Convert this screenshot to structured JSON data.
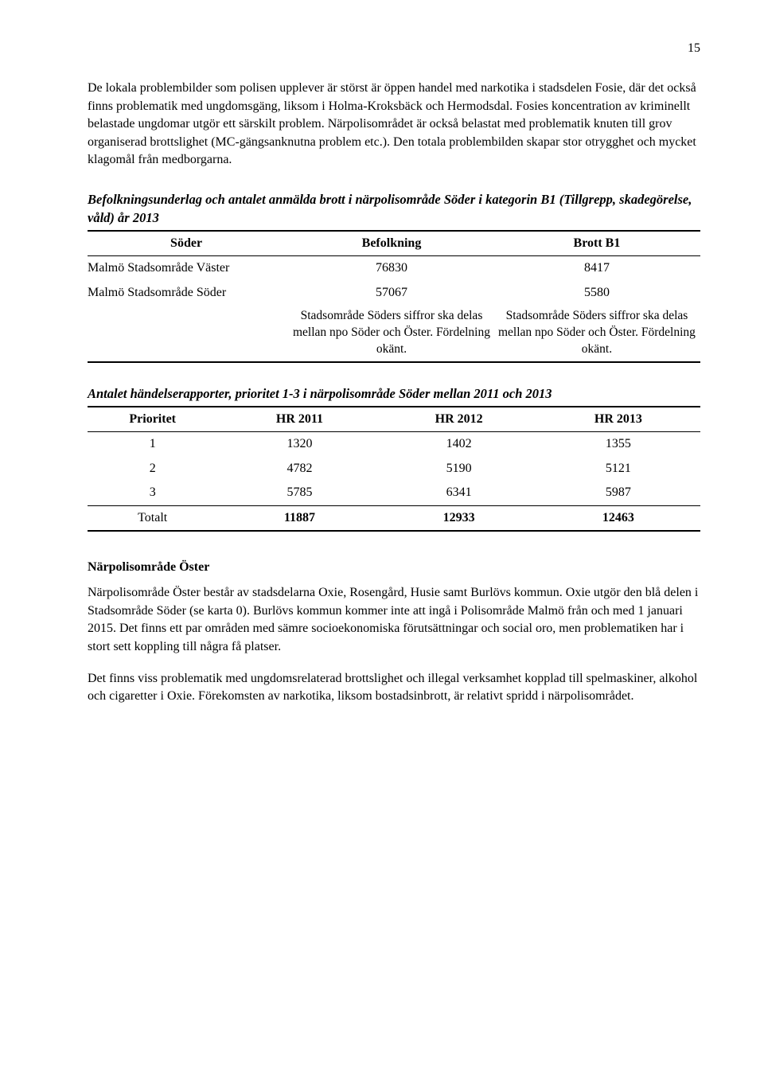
{
  "page_number": "15",
  "para1": "De lokala problembilder som polisen upplever är störst är öppen handel med narkotika i stadsdelen Fosie, där det också finns problematik med ungdomsgäng, liksom i Holma-Kroksbäck och Hermodsdal. Fosies koncentration av kriminellt belastade ungdomar utgör ett särskilt problem. Närpolisområdet är också belastat med problematik knuten till grov organiserad brottslighet (MC-gängsanknutna problem etc.). Den totala problembilden skapar stor otrygghet och mycket klagomål från medborgarna.",
  "table1": {
    "title": "Befolkningsunderlag och antalet anmälda brott i närpolisområde Söder i kategorin B1 (Tillgrepp, skadegörelse, våld) år 2013",
    "header": [
      "Söder",
      "Befolkning",
      "Brott B1"
    ],
    "rows": [
      [
        "Malmö Stadsområde Väster",
        "76830",
        "8417"
      ],
      [
        "Malmö Stadsområde Söder",
        "57067",
        "5580"
      ]
    ],
    "note_left": "Stadsområde Söders siffror ska delas mellan npo Söder och Öster. Fördelning okänt.",
    "note_right": "Stadsområde Söders siffror ska delas mellan npo Söder och Öster. Fördelning okänt."
  },
  "table2": {
    "title": "Antalet händelserapporter, prioritet 1-3 i närpolisområde Söder mellan 2011 och 2013",
    "header": [
      "Prioritet",
      "HR 2011",
      "HR 2012",
      "HR 2013"
    ],
    "rows": [
      [
        "1",
        "1320",
        "1402",
        "1355"
      ],
      [
        "2",
        "4782",
        "5190",
        "5121"
      ],
      [
        "3",
        "5785",
        "6341",
        "5987"
      ]
    ],
    "total": [
      "Totalt",
      "11887",
      "12933",
      "12463"
    ]
  },
  "section2_heading": "Närpolisområde Öster",
  "para2": "Närpolisområde Öster består av stadsdelarna Oxie, Rosengård, Husie samt Burlövs kommun. Oxie utgör den blå delen i Stadsområde Söder (se karta 0). Burlövs kommun kommer inte att ingå i Polisområde Malmö från och med 1 januari 2015. Det finns ett par områden med sämre socioekonomiska förutsättningar och social oro, men problematiken har i stort sett koppling till några få platser.",
  "para3": "Det finns viss problematik med ungdomsrelaterad brottslighet och illegal verksamhet kopplad till spelmaskiner, alkohol och cigaretter i Oxie. Förekomsten av narkotika, liksom bostadsinbrott, är relativt spridd i närpolisområdet."
}
